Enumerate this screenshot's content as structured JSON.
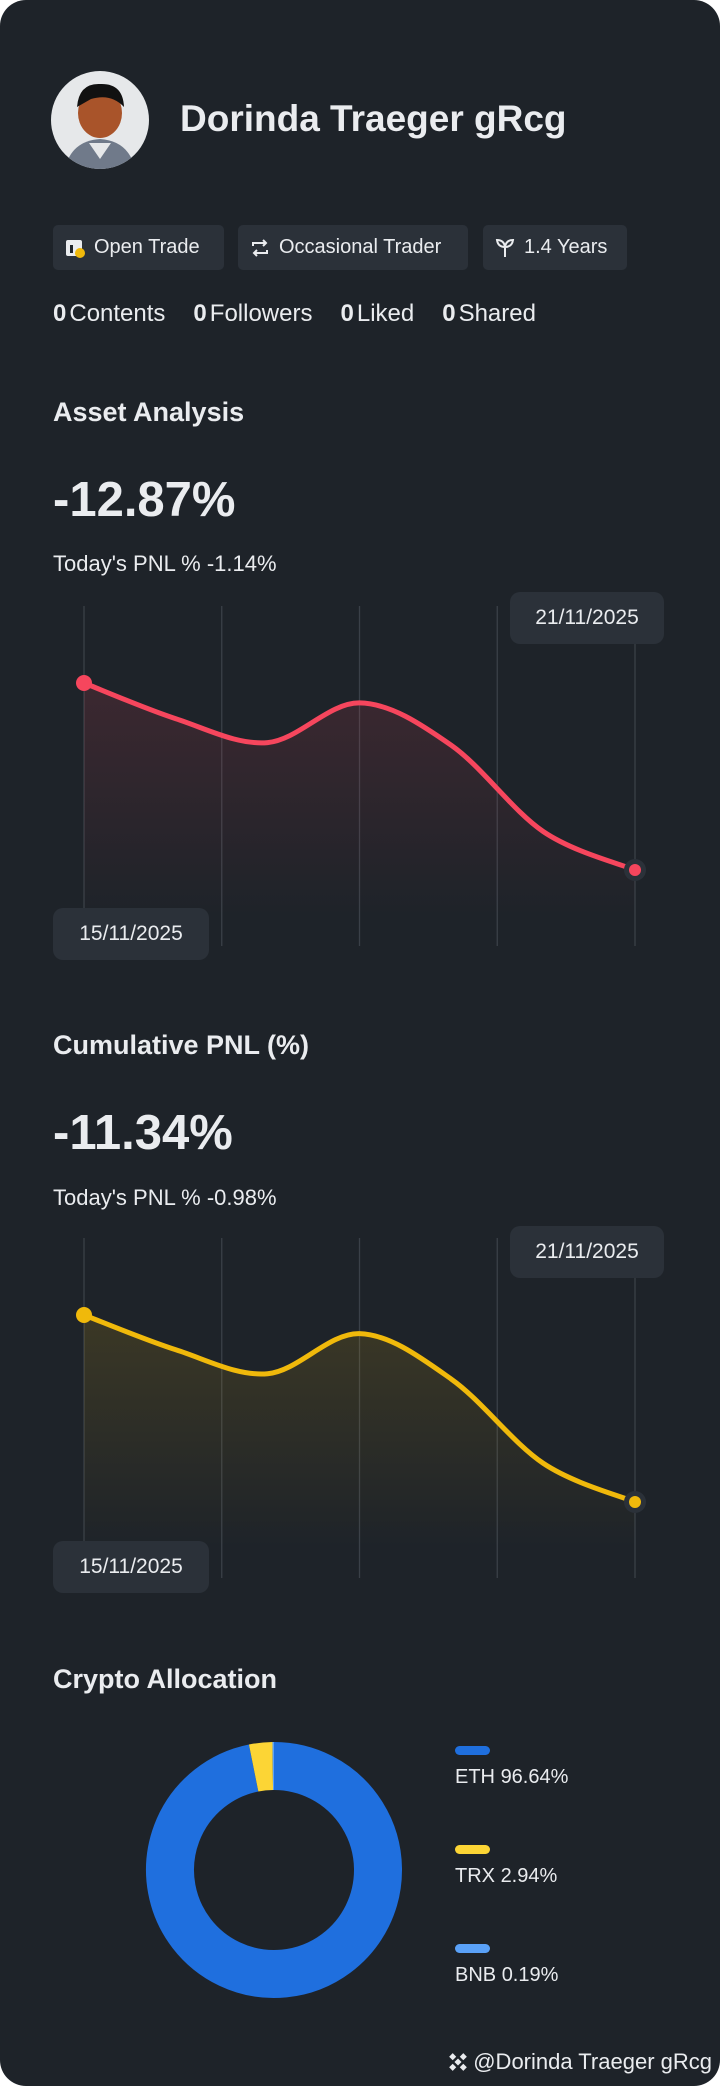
{
  "profile": {
    "name": "Dorinda Traeger gRcg",
    "tags": [
      "Open Trade",
      "Occasional Trader",
      "1.4 Years"
    ],
    "stats": [
      {
        "count": 0,
        "label": "Contents"
      },
      {
        "count": 0,
        "label": "Followers"
      },
      {
        "count": 0,
        "label": "Liked"
      },
      {
        "count": 0,
        "label": "Shared"
      }
    ]
  },
  "asset_analysis": {
    "title": "Asset Analysis",
    "value": "-12.87%",
    "today_label": "Today's PNL %",
    "today_value": "-1.14%",
    "chart": {
      "type": "line",
      "color": "#f6465d",
      "categories": [
        "15/11/2025",
        null,
        null,
        null,
        null,
        null,
        "21/11/2025"
      ],
      "values": [
        0,
        -2.46,
        -4.1,
        -1.37,
        -4.29,
        -10.22,
        -12.87
      ]
    }
  },
  "cumulative_pnl": {
    "title": "Cumulative PNL (%)",
    "value": "-11.34%",
    "today_label": "Today's PNL %",
    "today_value": "-0.98%",
    "chart": {
      "type": "line",
      "color": "#f0b90b",
      "categories": [
        "15/11/2025",
        null,
        null,
        null,
        null,
        null,
        "21/11/2025"
      ],
      "values": [
        0,
        -2.11,
        -3.56,
        -1.13,
        -3.89,
        -8.99,
        -11.34
      ]
    }
  },
  "crypto_allocation": {
    "title": "Crypto Allocation",
    "chart": {
      "type": "pie",
      "categories": [
        "ETH",
        "TRX",
        "BNB"
      ],
      "values": [
        96.64,
        2.94,
        0.19
      ],
      "value_labels": [
        "96.64%",
        "2.94%",
        "0.19%"
      ],
      "colors": [
        "#1f6fde",
        "#fcd535",
        "#5aa1f7"
      ]
    }
  },
  "footer": {
    "text": "@Dorinda Traeger gRcg"
  }
}
